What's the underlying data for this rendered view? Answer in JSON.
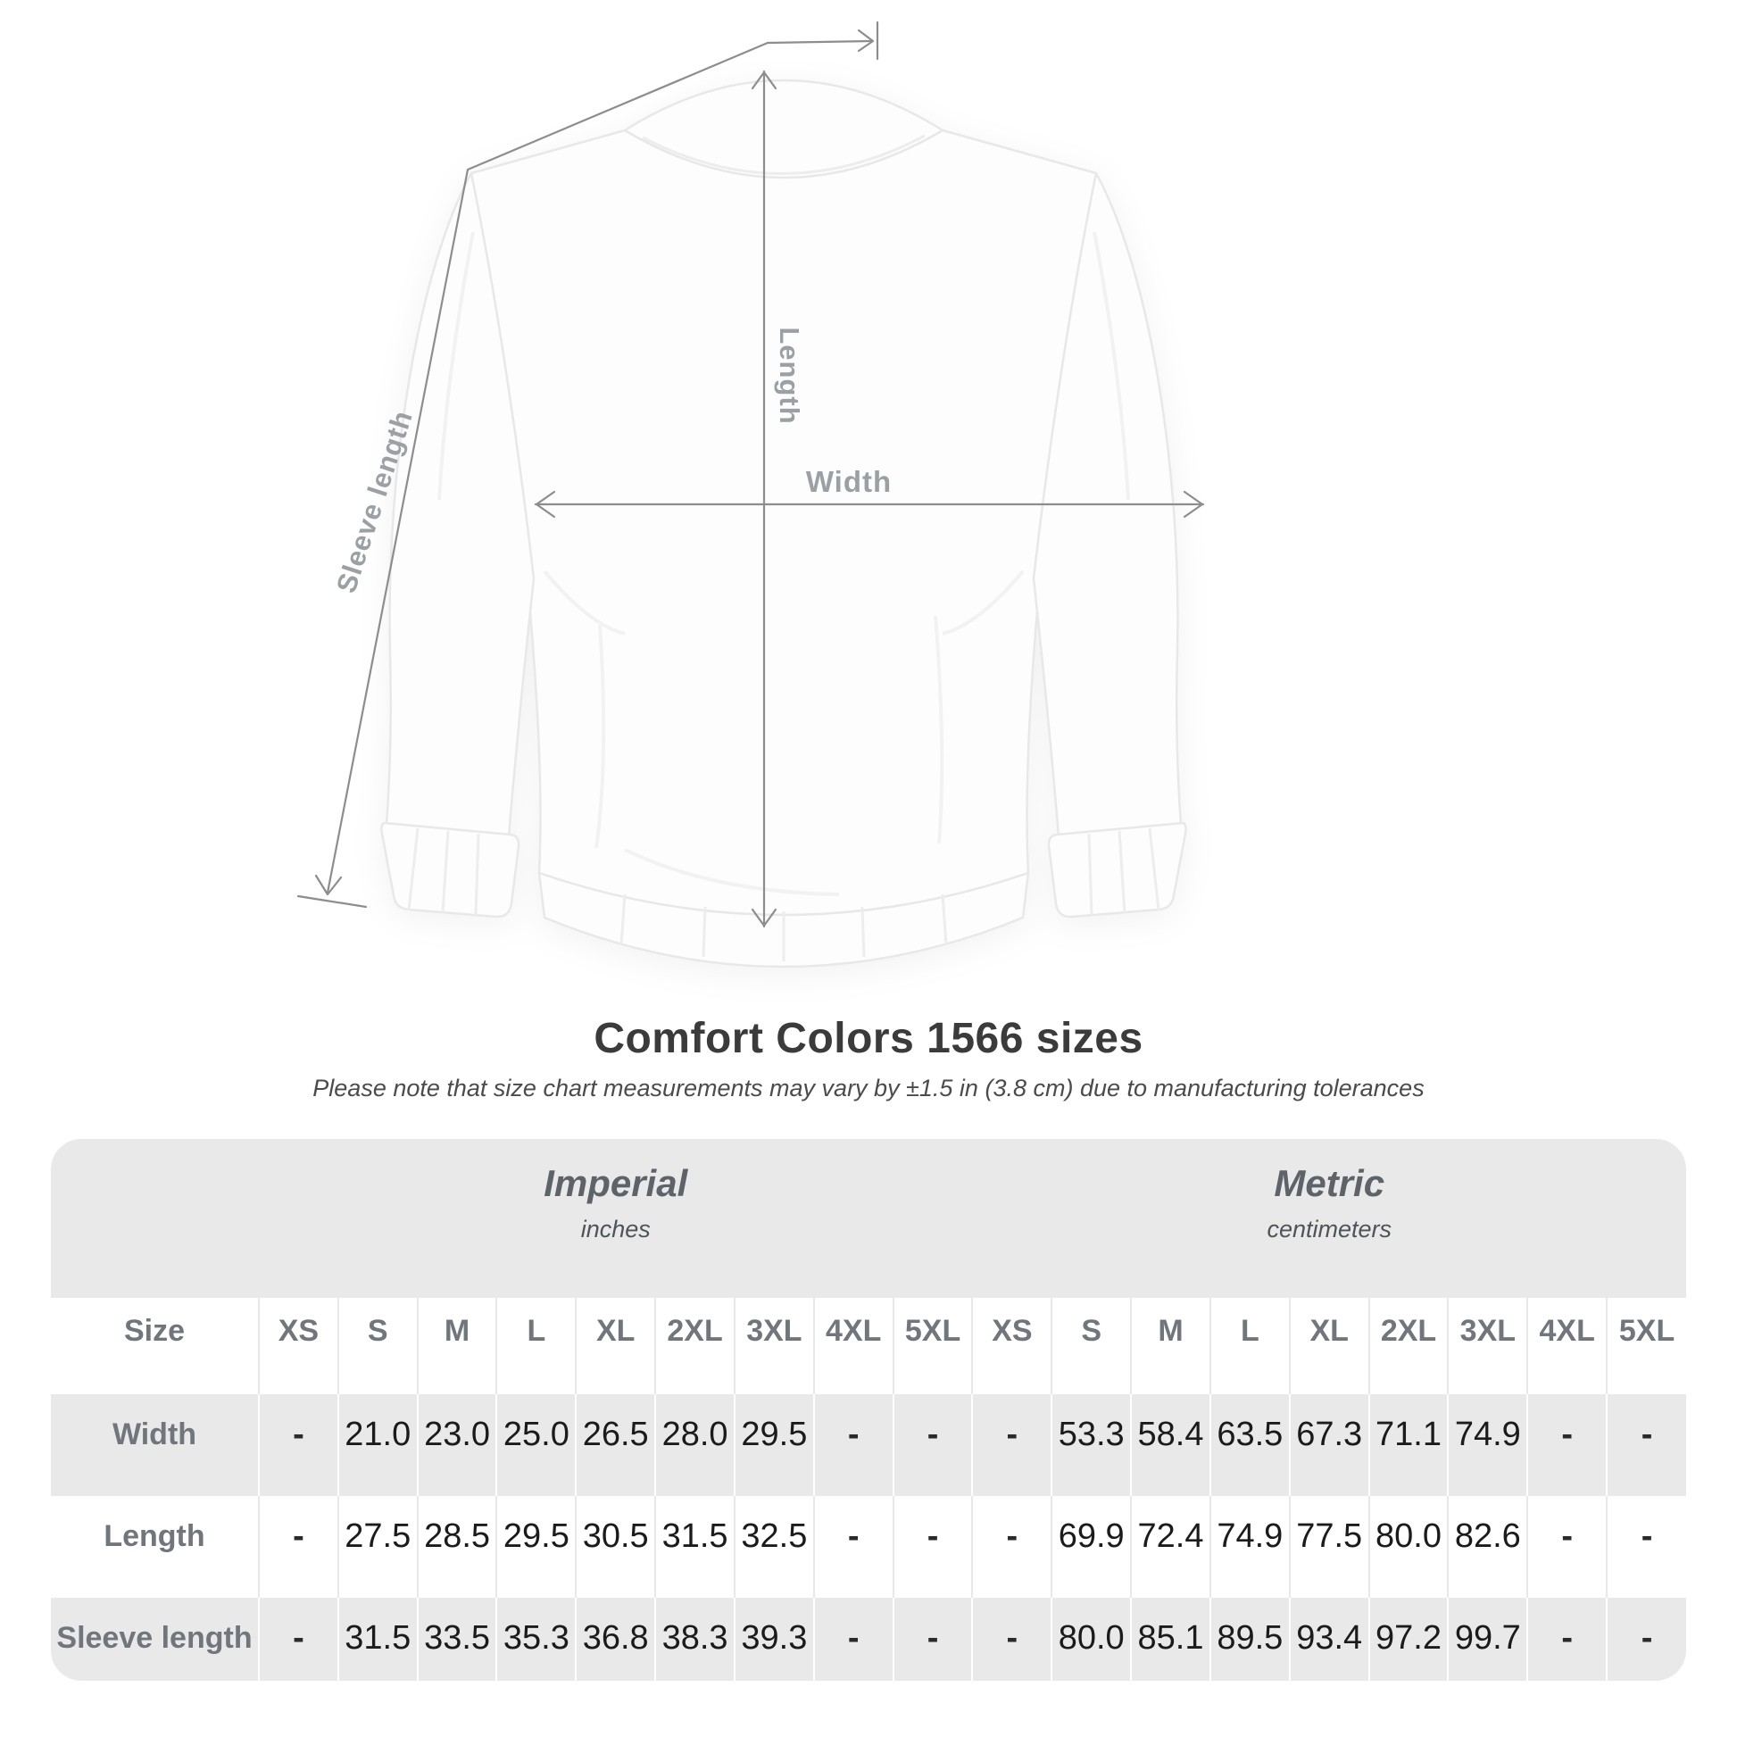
{
  "diagram": {
    "length_label": "Length",
    "width_label": "Width",
    "sleeve_length_label": "Sleeve length"
  },
  "chart_data": {
    "type": "table",
    "title": "Comfort Colors 1566 sizes",
    "note": "Please note that size chart measurements may vary by ±1.5 in (3.8 cm) due to manufacturing tolerances",
    "corner_label": "Size",
    "unit_groups": [
      {
        "name": "Imperial",
        "unit": "inches",
        "sizes": [
          "XS",
          "S",
          "M",
          "L",
          "XL",
          "2XL",
          "3XL",
          "4XL",
          "5XL"
        ]
      },
      {
        "name": "Metric",
        "unit": "centimeters",
        "sizes": [
          "XS",
          "S",
          "M",
          "L",
          "XL",
          "2XL",
          "3XL",
          "4XL",
          "5XL"
        ]
      }
    ],
    "rows": [
      {
        "label": "Width",
        "imperial": [
          "-",
          "21.0",
          "23.0",
          "25.0",
          "26.5",
          "28.0",
          "29.5",
          "-",
          "-"
        ],
        "metric": [
          "-",
          "53.3",
          "58.4",
          "63.5",
          "67.3",
          "71.1",
          "74.9",
          "-",
          "-"
        ]
      },
      {
        "label": "Length",
        "imperial": [
          "-",
          "27.5",
          "28.5",
          "29.5",
          "30.5",
          "31.5",
          "32.5",
          "-",
          "-"
        ],
        "metric": [
          "-",
          "69.9",
          "72.4",
          "74.9",
          "77.5",
          "80.0",
          "82.6",
          "-",
          "-"
        ]
      },
      {
        "label": "Sleeve length",
        "imperial": [
          "-",
          "31.5",
          "33.5",
          "35.3",
          "36.8",
          "38.3",
          "39.3",
          "-",
          "-"
        ],
        "metric": [
          "-",
          "80.0",
          "85.1",
          "89.5",
          "93.4",
          "97.2",
          "99.7",
          "-",
          "-"
        ]
      }
    ]
  },
  "colors": {
    "row_gray": "#e9e9e9",
    "header_text": "#70767b",
    "value_text": "#1b1b1b",
    "annotation_line": "#8d8d8d",
    "dimension_label": "#9aa0a4",
    "title_text": "#3b3b3b"
  }
}
